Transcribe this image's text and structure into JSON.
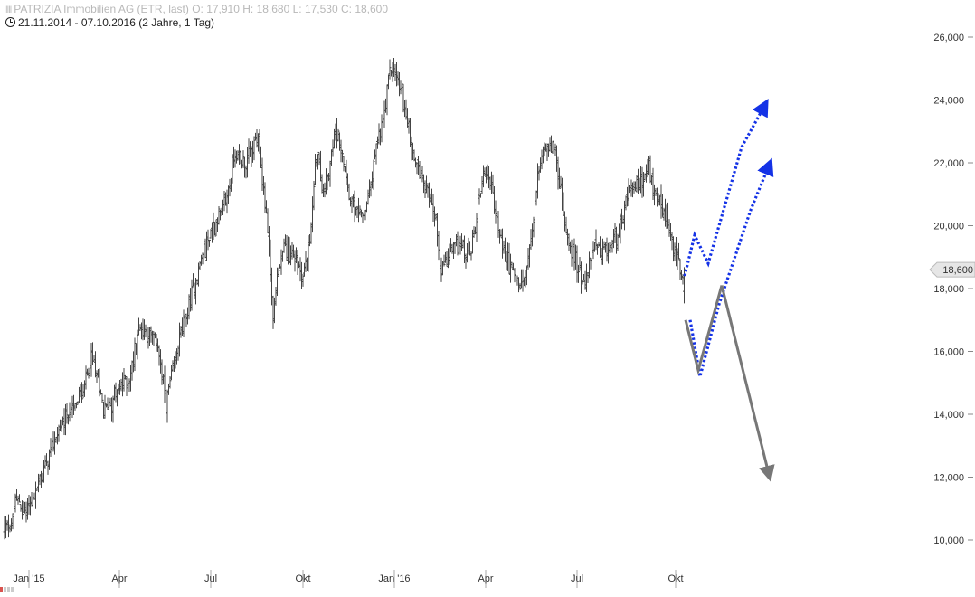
{
  "header": {
    "title_line": "PATRIZIA Immobilien AG (ETR, last)  O: 17,910  H: 18,680  L: 17,530  C: 18,600",
    "period_line": "21.11.2014 - 07.10.2016 (2 Jahre, 1 Tag)"
  },
  "chart_data": {
    "type": "bar",
    "subtype": "ohlc",
    "title": "PATRIZIA Immobilien AG (ETR, last)",
    "period": "21.11.2014 - 07.10.2016 (2 Jahre, 1 Tag)",
    "last_ohlc": {
      "open": 17.91,
      "high": 18.68,
      "low": 17.53,
      "close": 18.6
    },
    "last_price_label": "18,600",
    "ylim": [
      9.5,
      26.5
    ],
    "y_ticks": [
      10,
      12,
      14,
      16,
      18,
      20,
      22,
      24,
      26
    ],
    "y_tick_labels": [
      "10,000",
      "12,000",
      "14,000",
      "16,000",
      "18,000",
      "20,000",
      "22,000",
      "24,000",
      "26,000"
    ],
    "x_ticks": [
      {
        "label": "Jan '15",
        "t": 27
      },
      {
        "label": "Apr",
        "t": 127
      },
      {
        "label": "Jul",
        "t": 228
      },
      {
        "label": "Okt",
        "t": 330
      },
      {
        "label": "Jan '16",
        "t": 431
      },
      {
        "label": "Apr",
        "t": 532
      },
      {
        "label": "Jul",
        "t": 633
      },
      {
        "label": "Okt",
        "t": 742
      }
    ],
    "xlim": [
      0,
      955
    ],
    "grid": false,
    "price_anchors": [
      [
        0,
        10.3
      ],
      [
        8,
        10.5
      ],
      [
        12,
        11.3
      ],
      [
        22,
        10.9
      ],
      [
        30,
        11.2
      ],
      [
        40,
        12.0
      ],
      [
        50,
        12.8
      ],
      [
        60,
        13.5
      ],
      [
        70,
        14.0
      ],
      [
        85,
        14.6
      ],
      [
        97,
        15.8
      ],
      [
        110,
        14.1
      ],
      [
        125,
        14.7
      ],
      [
        140,
        15.3
      ],
      [
        148,
        16.8
      ],
      [
        160,
        16.5
      ],
      [
        170,
        16.2
      ],
      [
        178,
        14.3
      ],
      [
        185,
        15.2
      ],
      [
        195,
        16.6
      ],
      [
        205,
        17.5
      ],
      [
        215,
        18.7
      ],
      [
        225,
        19.6
      ],
      [
        235,
        20.2
      ],
      [
        245,
        20.8
      ],
      [
        255,
        22.3
      ],
      [
        265,
        22.0
      ],
      [
        272,
        22.3
      ],
      [
        280,
        22.8
      ],
      [
        287,
        21.0
      ],
      [
        292,
        19.5
      ],
      [
        297,
        17.0
      ],
      [
        302,
        18.5
      ],
      [
        310,
        19.3
      ],
      [
        322,
        19.0
      ],
      [
        330,
        18.4
      ],
      [
        337,
        19.3
      ],
      [
        345,
        22.4
      ],
      [
        352,
        21.0
      ],
      [
        360,
        21.8
      ],
      [
        365,
        23.0
      ],
      [
        372,
        22.6
      ],
      [
        380,
        21.2
      ],
      [
        387,
        20.4
      ],
      [
        395,
        20.2
      ],
      [
        402,
        20.8
      ],
      [
        410,
        22.3
      ],
      [
        420,
        23.5
      ],
      [
        427,
        25.1
      ],
      [
        433,
        24.7
      ],
      [
        440,
        24.2
      ],
      [
        447,
        23.0
      ],
      [
        455,
        22.0
      ],
      [
        462,
        21.6
      ],
      [
        470,
        21.0
      ],
      [
        478,
        20.0
      ],
      [
        482,
        18.4
      ],
      [
        490,
        19.0
      ],
      [
        500,
        19.6
      ],
      [
        510,
        19.0
      ],
      [
        518,
        19.4
      ],
      [
        525,
        21.0
      ],
      [
        532,
        22.0
      ],
      [
        538,
        21.2
      ],
      [
        545,
        20.0
      ],
      [
        552,
        19.2
      ],
      [
        560,
        18.6
      ],
      [
        568,
        18.1
      ],
      [
        575,
        18.3
      ],
      [
        582,
        19.5
      ],
      [
        590,
        21.6
      ],
      [
        597,
        22.6
      ],
      [
        603,
        22.7
      ],
      [
        610,
        22.2
      ],
      [
        617,
        20.5
      ],
      [
        625,
        19.4
      ],
      [
        632,
        18.8
      ],
      [
        640,
        18.2
      ],
      [
        645,
        18.5
      ],
      [
        652,
        19.4
      ],
      [
        660,
        19.0
      ],
      [
        667,
        19.2
      ],
      [
        675,
        19.6
      ],
      [
        682,
        20.1
      ],
      [
        690,
        21.0
      ],
      [
        697,
        21.2
      ],
      [
        705,
        21.4
      ],
      [
        712,
        21.9
      ],
      [
        718,
        21.0
      ],
      [
        725,
        20.6
      ],
      [
        732,
        20.1
      ],
      [
        738,
        19.4
      ],
      [
        743,
        19.0
      ],
      [
        748,
        18.6
      ],
      [
        752,
        18.2
      ]
    ],
    "series": [
      {
        "name": "",
        "style": "dotted",
        "color": "#1432e6",
        "arrow": true,
        "points": [
          [
            752,
            18.4
          ],
          [
            763,
            19.7
          ],
          [
            778,
            18.8
          ],
          [
            815,
            22.5
          ],
          [
            840,
            23.8
          ]
        ]
      },
      {
        "name": "",
        "style": "dotted",
        "color": "#1432e6",
        "arrow": true,
        "points": [
          [
            758,
            17.0
          ],
          [
            769,
            15.2
          ],
          [
            790,
            17.5
          ],
          [
            825,
            20.5
          ],
          [
            845,
            21.9
          ]
        ]
      },
      {
        "name": "",
        "style": "solid",
        "color": "#777777",
        "arrow": false,
        "points": [
          [
            753,
            17.0
          ],
          [
            767,
            15.4
          ],
          [
            793,
            18.1
          ]
        ]
      },
      {
        "name": "",
        "style": "solid",
        "color": "#777777",
        "arrow": true,
        "points": [
          [
            793,
            18.1
          ],
          [
            845,
            12.1
          ]
        ]
      }
    ]
  }
}
